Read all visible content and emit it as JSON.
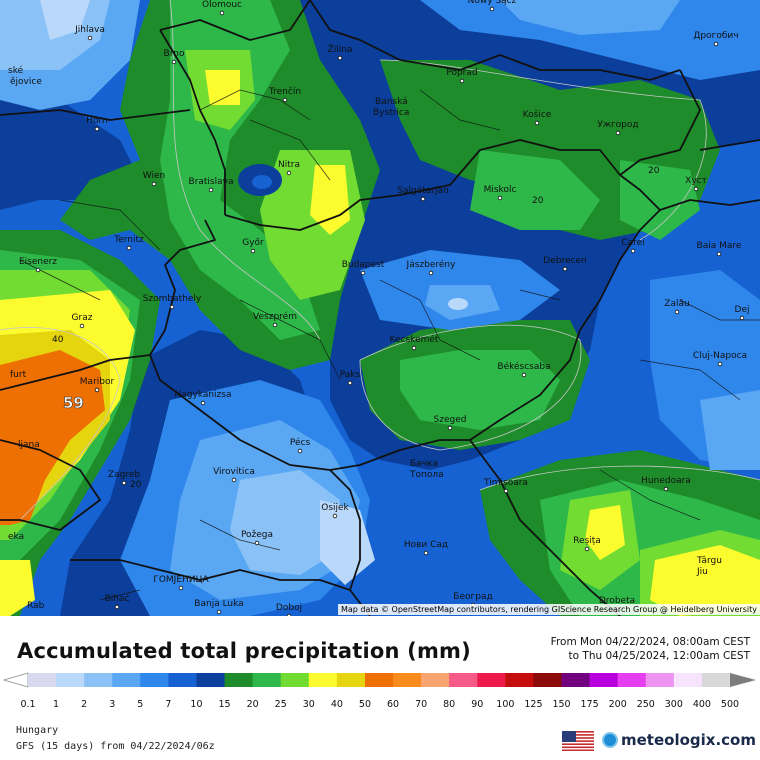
{
  "map": {
    "attribution": "Map data © OpenStreetMap contributors, rendering GIScience Research Group @ Heidelberg University",
    "cities": [
      {
        "name": "Olomouc"
      },
      {
        "name": "Nowy Sącz"
      },
      {
        "name": "Дрогобич"
      },
      {
        "name": "Jihlava"
      },
      {
        "name": "Brno"
      },
      {
        "name": "Žilina"
      },
      {
        "name": "Poprad"
      },
      {
        "name": "ské"
      },
      {
        "name": "ějovice"
      },
      {
        "name": "Trenčín"
      },
      {
        "name": "Banská"
      },
      {
        "name": "Bystrica"
      },
      {
        "name": "Košice"
      },
      {
        "name": "Ужгород"
      },
      {
        "name": "Horn"
      },
      {
        "name": "Nitra"
      },
      {
        "name": "Хуст"
      },
      {
        "name": "Wien"
      },
      {
        "name": "Bratislava"
      },
      {
        "name": "Salgótarján"
      },
      {
        "name": "Miskolc"
      },
      {
        "name": "Ternitz"
      },
      {
        "name": "Győr"
      },
      {
        "name": "Carei"
      },
      {
        "name": "Baia Mare"
      },
      {
        "name": "Eisenerz"
      },
      {
        "name": "Budapest"
      },
      {
        "name": "Jászberény"
      },
      {
        "name": "Debrecen"
      },
      {
        "name": "Szombathely"
      },
      {
        "name": "Zalău"
      },
      {
        "name": "Graz"
      },
      {
        "name": "Veszprém"
      },
      {
        "name": "Dej"
      },
      {
        "name": "Kecskemét"
      },
      {
        "name": "Cluj-Napoca"
      },
      {
        "name": "Maribor"
      },
      {
        "name": "Paks"
      },
      {
        "name": "Békéscsaba"
      },
      {
        "name": "Nagykanizsa"
      },
      {
        "name": "furt"
      },
      {
        "name": "Szeged"
      },
      {
        "name": "ljana"
      },
      {
        "name": "Pécs"
      },
      {
        "name": "Бачка"
      },
      {
        "name": "Топола"
      },
      {
        "name": "Zagreb"
      },
      {
        "name": "Virovitica"
      },
      {
        "name": "Timișoara"
      },
      {
        "name": "Hunedoara"
      },
      {
        "name": "Osijek"
      },
      {
        "name": "Reșița"
      },
      {
        "name": "Požega"
      },
      {
        "name": "Нови Сад"
      },
      {
        "name": "Târgu"
      },
      {
        "name": "Jiu"
      },
      {
        "name": "ГОМЈЕНИЦА"
      },
      {
        "name": "Bihać"
      },
      {
        "name": "Banja Luka"
      },
      {
        "name": "Doboj"
      },
      {
        "name": "Београд"
      },
      {
        "name": "Drobeta"
      },
      {
        "name": "eka"
      },
      {
        "name": "Rab"
      }
    ],
    "contour_labels": [
      "40",
      "20",
      "20",
      "20"
    ],
    "max_value": "59"
  },
  "header": {
    "title": "Accumulated total precipitation (mm)",
    "period_from": "From Mon 04/22/2024, 08:00am CEST",
    "period_to": "to Thu 04/25/2024, 12:00am CEST"
  },
  "scale": {
    "ticks": [
      "0.1",
      "1",
      "2",
      "3",
      "5",
      "7",
      "10",
      "15",
      "20",
      "25",
      "30",
      "40",
      "50",
      "60",
      "70",
      "80",
      "90",
      "100",
      "125",
      "150",
      "175",
      "200",
      "250",
      "300",
      "400",
      "500"
    ],
    "colors": [
      "#d8d8f0",
      "#b9d8fa",
      "#8ac2f8",
      "#5aa7f3",
      "#2f87ec",
      "#1662d2",
      "#0b3f9b",
      "#1e8c2a",
      "#2fb84a",
      "#73dc33",
      "#fbfb2d",
      "#e4d50e",
      "#ee6f02",
      "#f98b1c",
      "#f9a36e",
      "#f85a87",
      "#ee1a4b",
      "#c50d0d",
      "#8d0a0a",
      "#710081",
      "#b800dc",
      "#e53ef0",
      "#ee93f2",
      "#f7e3fb",
      "#d8d8d8"
    ]
  },
  "footer": {
    "region": "Hungary",
    "model": "GFS (15 days) from  04/22/2024/06z",
    "brand": "meteologix.com"
  },
  "colors": {
    "contour": "#c8c8c8",
    "border": "#111111"
  }
}
